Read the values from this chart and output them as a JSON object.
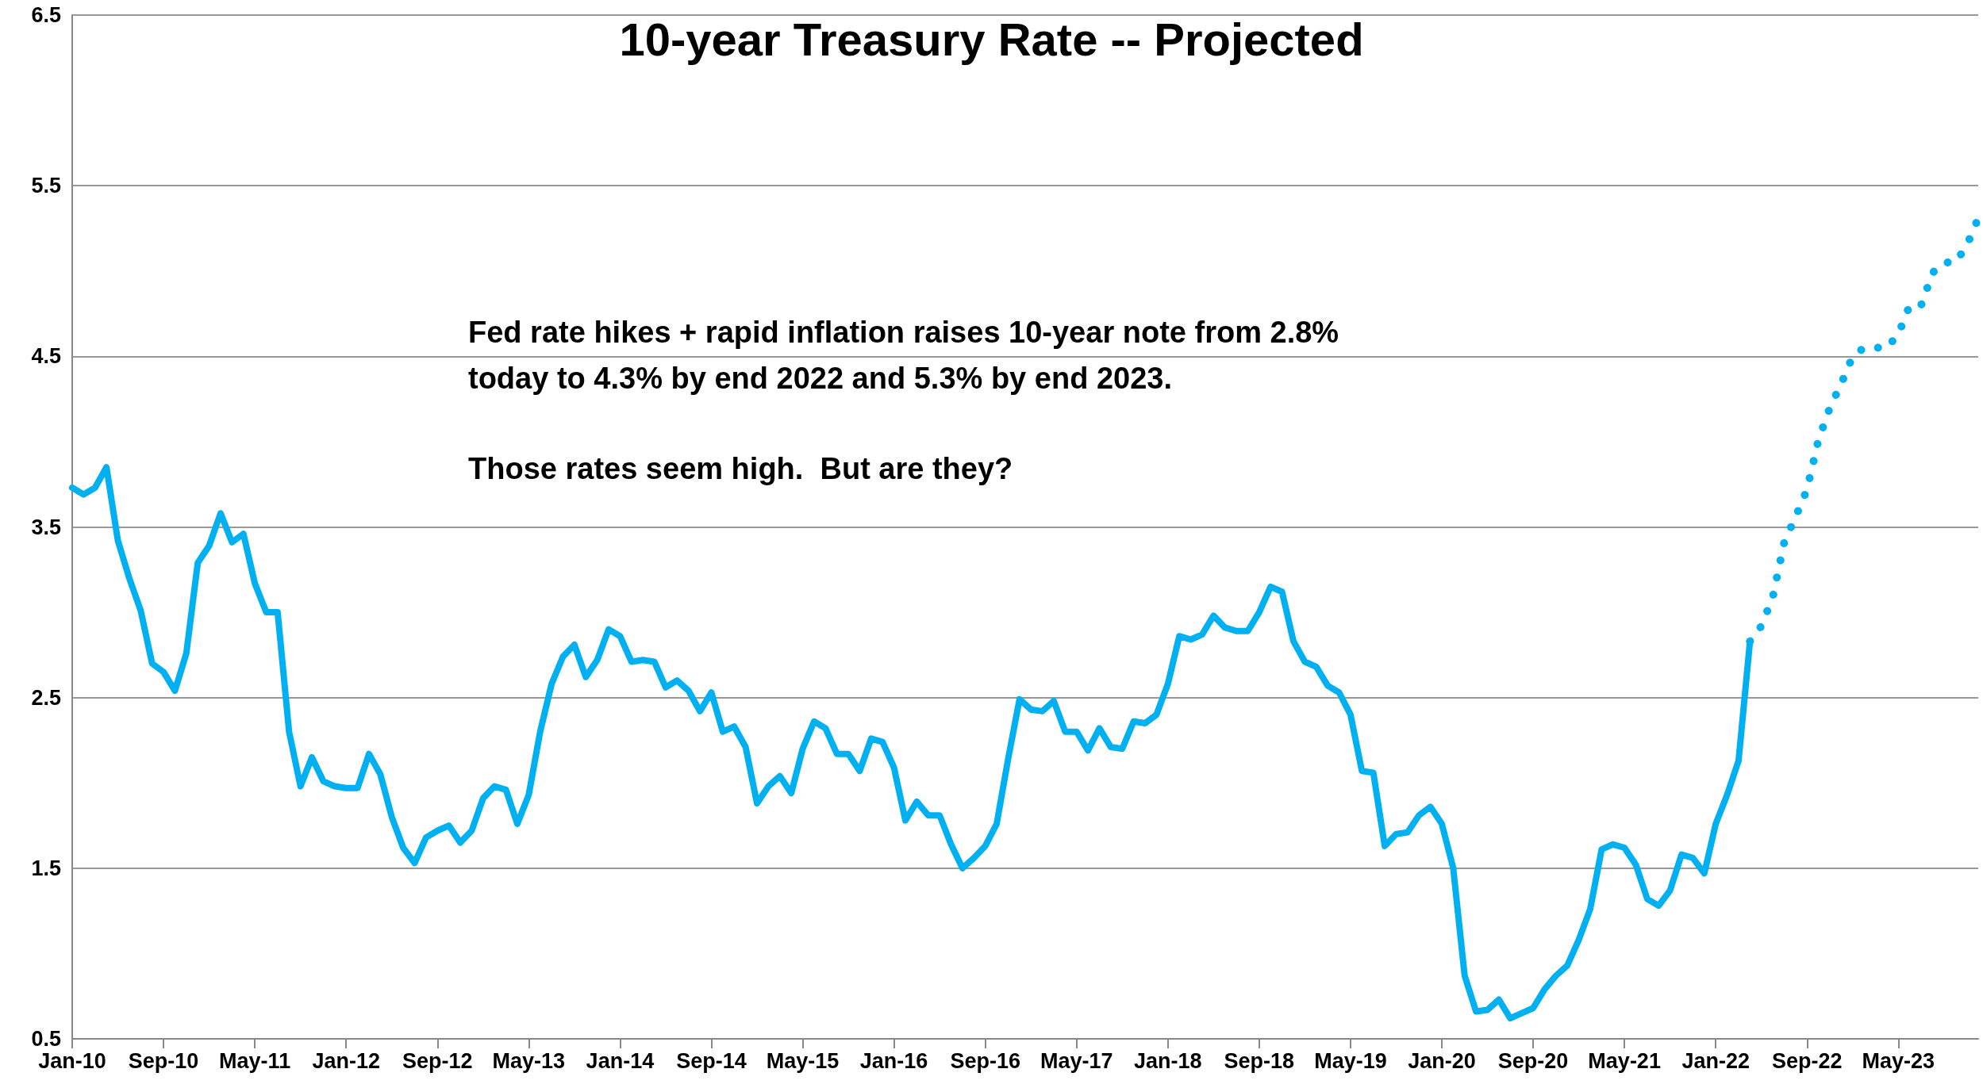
{
  "chart_data": {
    "type": "line",
    "title": "10-year Treasury Rate -- Projected",
    "annotations": [
      "Fed rate hikes + rapid inflation raises 10-year note from 2.8% today to 4.3% by end 2022 and 5.3% by end 2023.",
      "Those rates seem high.  But are they?"
    ],
    "categories": [
      "Jan-10",
      null,
      null,
      null,
      null,
      null,
      null,
      null,
      "Sep-10",
      null,
      null,
      null,
      null,
      null,
      null,
      null,
      "May-11",
      null,
      null,
      null,
      null,
      null,
      null,
      null,
      "Jan-12",
      null,
      null,
      null,
      null,
      null,
      null,
      null,
      "Sep-12",
      null,
      null,
      null,
      null,
      null,
      null,
      null,
      "May-13",
      null,
      null,
      null,
      null,
      null,
      null,
      null,
      "Jan-14",
      null,
      null,
      null,
      null,
      null,
      null,
      null,
      "Sep-14",
      null,
      null,
      null,
      null,
      null,
      null,
      null,
      "May-15",
      null,
      null,
      null,
      null,
      null,
      null,
      null,
      "Jan-16",
      null,
      null,
      null,
      null,
      null,
      null,
      null,
      "Sep-16",
      null,
      null,
      null,
      null,
      null,
      null,
      null,
      "May-17",
      null,
      null,
      null,
      null,
      null,
      null,
      null,
      "Jan-18",
      null,
      null,
      null,
      null,
      null,
      null,
      null,
      "Sep-18",
      null,
      null,
      null,
      null,
      null,
      null,
      null,
      "May-19",
      null,
      null,
      null,
      null,
      null,
      null,
      null,
      "Jan-20",
      null,
      null,
      null,
      null,
      null,
      null,
      null,
      "Sep-20",
      null,
      null,
      null,
      null,
      null,
      null,
      null,
      "May-21",
      null,
      null,
      null,
      null,
      null,
      null,
      null,
      "Jan-22",
      null,
      null,
      null,
      null,
      null,
      null,
      null,
      "Sep-22",
      null,
      null,
      null,
      null,
      null,
      null,
      null,
      "May-23",
      null,
      null,
      null,
      null,
      null,
      null,
      null
    ],
    "series": [
      {
        "color": "#00b0f0",
        "line_style": "solid",
        "values": [
          3.73,
          3.69,
          3.73,
          3.85,
          3.42,
          3.2,
          3.01,
          2.7,
          2.65,
          2.54,
          2.76,
          3.29,
          3.39,
          3.58,
          3.41,
          3.46,
          3.17,
          3.0,
          3.0,
          2.3,
          1.98,
          2.15,
          2.01,
          1.98,
          1.97,
          1.97,
          2.17,
          2.05,
          1.8,
          1.62,
          1.53,
          1.68,
          1.72,
          1.75,
          1.65,
          1.72,
          1.91,
          1.98,
          1.96,
          1.76,
          1.93,
          2.3,
          2.58,
          2.74,
          2.81,
          2.62,
          2.72,
          2.9,
          2.86,
          2.71,
          2.72,
          2.71,
          2.56,
          2.6,
          2.54,
          2.42,
          2.53,
          2.3,
          2.33,
          2.21,
          1.88,
          1.98,
          2.04,
          1.94,
          2.2,
          2.36,
          2.32,
          2.17,
          2.17,
          2.07,
          2.26,
          2.24,
          2.09,
          1.78,
          1.89,
          1.81,
          1.81,
          1.64,
          1.5,
          1.56,
          1.63,
          1.76,
          2.14,
          2.49,
          2.43,
          2.42,
          2.48,
          2.3,
          2.3,
          2.19,
          2.32,
          2.21,
          2.2,
          2.36,
          2.35,
          2.4,
          2.58,
          2.86,
          2.84,
          2.87,
          2.98,
          2.91,
          2.89,
          2.89,
          3.0,
          3.15,
          3.12,
          2.83,
          2.71,
          2.68,
          2.57,
          2.53,
          2.4,
          2.07,
          2.06,
          1.63,
          1.7,
          1.71,
          1.81,
          1.86,
          1.76,
          1.5,
          0.87,
          0.66,
          0.67,
          0.73,
          0.62,
          0.65,
          0.68,
          0.79,
          0.87,
          0.93,
          1.08,
          1.26,
          1.61,
          1.64,
          1.62,
          1.52,
          1.32,
          1.28,
          1.37,
          1.58,
          1.56,
          1.47,
          1.76,
          1.93,
          2.13,
          2.83,
          null,
          null,
          null,
          null,
          null,
          null,
          null,
          null,
          null,
          null,
          null,
          null,
          null,
          null,
          null,
          null,
          null,
          null,
          null,
          null
        ]
      },
      {
        "color": "#00b0f0",
        "line_style": "dotted",
        "values": [
          null,
          null,
          null,
          null,
          null,
          null,
          null,
          null,
          null,
          null,
          null,
          null,
          null,
          null,
          null,
          null,
          null,
          null,
          null,
          null,
          null,
          null,
          null,
          null,
          null,
          null,
          null,
          null,
          null,
          null,
          null,
          null,
          null,
          null,
          null,
          null,
          null,
          null,
          null,
          null,
          null,
          null,
          null,
          null,
          null,
          null,
          null,
          null,
          null,
          null,
          null,
          null,
          null,
          null,
          null,
          null,
          null,
          null,
          null,
          null,
          null,
          null,
          null,
          null,
          null,
          null,
          null,
          null,
          null,
          null,
          null,
          null,
          null,
          null,
          null,
          null,
          null,
          null,
          null,
          null,
          null,
          null,
          null,
          null,
          null,
          null,
          null,
          null,
          null,
          null,
          null,
          null,
          null,
          null,
          null,
          null,
          null,
          null,
          null,
          null,
          null,
          null,
          null,
          null,
          null,
          null,
          null,
          null,
          null,
          null,
          null,
          null,
          null,
          null,
          null,
          null,
          null,
          null,
          null,
          null,
          null,
          null,
          null,
          null,
          null,
          null,
          null,
          null,
          null,
          null,
          null,
          null,
          null,
          null,
          null,
          null,
          null,
          null,
          null,
          null,
          null,
          null,
          null,
          null,
          null,
          null,
          null,
          2.83,
          2.92,
          3.09,
          3.41,
          3.56,
          3.72,
          4.01,
          4.2,
          4.34,
          4.5,
          4.55,
          4.55,
          4.55,
          4.63,
          4.8,
          4.8,
          4.99,
          5.05,
          5.05,
          5.15,
          5.31
        ]
      }
    ],
    "ylim": [
      0.5,
      6.5
    ],
    "yticks": [
      0.5,
      1.5,
      2.5,
      3.5,
      4.5,
      5.5,
      6.5
    ],
    "grid": "y",
    "marker": "none"
  }
}
